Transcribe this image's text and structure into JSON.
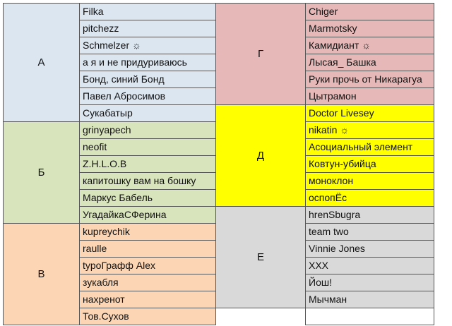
{
  "columns": [
    {
      "groups": [
        {
          "label": "А",
          "color": "#dce6f1",
          "members": [
            "Filka",
            "pitchezz",
            "Schmelzer ☼",
            "а я и не придуриваюсь",
            "Бонд, синий Бонд",
            "Павел Абросимов",
            "Сукабатыр"
          ]
        },
        {
          "label": "Б",
          "color": "#d8e4bc",
          "members": [
            "grinyapech",
            "neofit",
            "Z.H.L.O.B",
            "капитошку вам на бошку",
            "Маркус Бабель",
            "УгадайкаСФерина"
          ]
        },
        {
          "label": "В",
          "color": "#fcd5b4",
          "members": [
            "kupreychik",
            "raulle",
            "typoГрафф Alex",
            "зукабля",
            "нахренот",
            "Тов.Сухов"
          ]
        }
      ]
    },
    {
      "groups": [
        {
          "label": "Г",
          "color": "#e6b8b7",
          "members": [
            "Chiger",
            "Marmotsky",
            "Камидиант ☼",
            "Лысая_ Башка",
            "Руки прочь от Никарагуа",
            "Цытрамон"
          ]
        },
        {
          "label": "Д",
          "color": "#ffff00",
          "members": [
            "Doctor Livesey",
            "nikatin ☼",
            "Асоциальный элемент",
            "Ковтун-убийца",
            "моноклон",
            "оспопЁс"
          ]
        },
        {
          "label": "Е",
          "color": "#d9d9d9",
          "members": [
            "hrenSbugra",
            "team two",
            "Vinnie Jones",
            "XXX",
            "Йош!",
            "Мычман"
          ]
        }
      ]
    }
  ]
}
